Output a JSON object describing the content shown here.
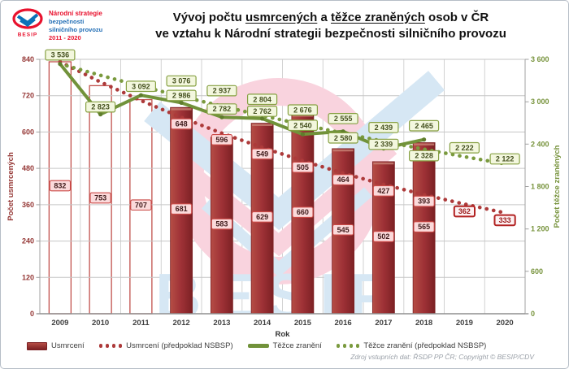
{
  "header": {
    "logo": {
      "emblem_text": "BESIP",
      "line1": "Národní strategie",
      "line2": "bezpečnosti",
      "line3": "silničního provozu",
      "line4": "2011 - 2020"
    },
    "title": {
      "l1a": "Vývoj počtu ",
      "l1b": "usmrcených",
      "l1c": " a ",
      "l1d": "těžce zraněných",
      "l1e": " osob v ČR",
      "line2": "ve vztahu k Národní strategii bezpečnosti silničního provozu"
    }
  },
  "chart_data": {
    "type": "bar",
    "title": "Vývoj počtu usmrcených a těžce zraněných osob v ČR ve vztahu k Národní strategii bezpečnosti silničního provozu",
    "categories": [
      "2009",
      "2010",
      "2011",
      "2012",
      "2013",
      "2014",
      "2015",
      "2016",
      "2017",
      "2018",
      "2019",
      "2020"
    ],
    "xlabel": "Rok",
    "grid": true,
    "legend_position": "bottom",
    "watermark_text": "BESIP",
    "left_axis": {
      "label": "Počet usmrcených",
      "min": 0,
      "max": 840,
      "step": 120
    },
    "right_axis": {
      "label": "Počet těžce zraněných",
      "min": 0,
      "max": 3600,
      "step": 600
    },
    "series": [
      {
        "name": "Usmrcení",
        "type": "bar",
        "axis": "left",
        "values": [
          832,
          753,
          707,
          681,
          583,
          629,
          660,
          545,
          502,
          565,
          null,
          null
        ],
        "fill": [
          "outline",
          "outline",
          "outline",
          "solid",
          "solid",
          "solid",
          "solid",
          "solid",
          "solid",
          "solid",
          null,
          null
        ]
      },
      {
        "name": "Usmrcení (předpoklad NSBSP)",
        "type": "dotted_line",
        "axis": "left",
        "values": [
          832,
          765,
          704,
          648,
          596,
          549,
          505,
          464,
          427,
          393,
          362,
          333
        ],
        "labels_shown": [
          null,
          null,
          null,
          648,
          596,
          549,
          505,
          464,
          427,
          393,
          362,
          333
        ]
      },
      {
        "name": "Těžce zranění",
        "type": "line",
        "axis": "right",
        "values": [
          3536,
          2823,
          3092,
          2986,
          2782,
          2762,
          2540,
          2580,
          2339,
          2465,
          null,
          null
        ]
      },
      {
        "name": "Těžce zranění (předpoklad NSBSP)",
        "type": "dotted_line",
        "axis": "right",
        "values": [
          3536,
          3373,
          3221,
          3076,
          2937,
          2804,
          2676,
          2555,
          2439,
          2328,
          2222,
          2122
        ],
        "labels_shown": [
          null,
          null,
          null,
          3076,
          2937,
          2804,
          2676,
          2555,
          2439,
          2328,
          2222,
          2122
        ]
      }
    ],
    "colors": {
      "bar_fill": "#9e3136",
      "bar_outline": "#c1504c",
      "deaths_axis_text": "#953735",
      "injuries_axis_text": "#77933c",
      "line_green": "#71923a",
      "dotted_red": "#ad3a3a",
      "dotted_green": "#7a9a3e",
      "label_pink_bg": "#fbdadb",
      "label_green_bg": "#f3f7de",
      "watermark_pink": "#f9d3de",
      "watermark_blue": "#d6e7f4"
    }
  },
  "footer": {
    "source": "Zdroj vstupních dat: ŘSDP PP ČR; Copyright © BESIP/CDV"
  }
}
